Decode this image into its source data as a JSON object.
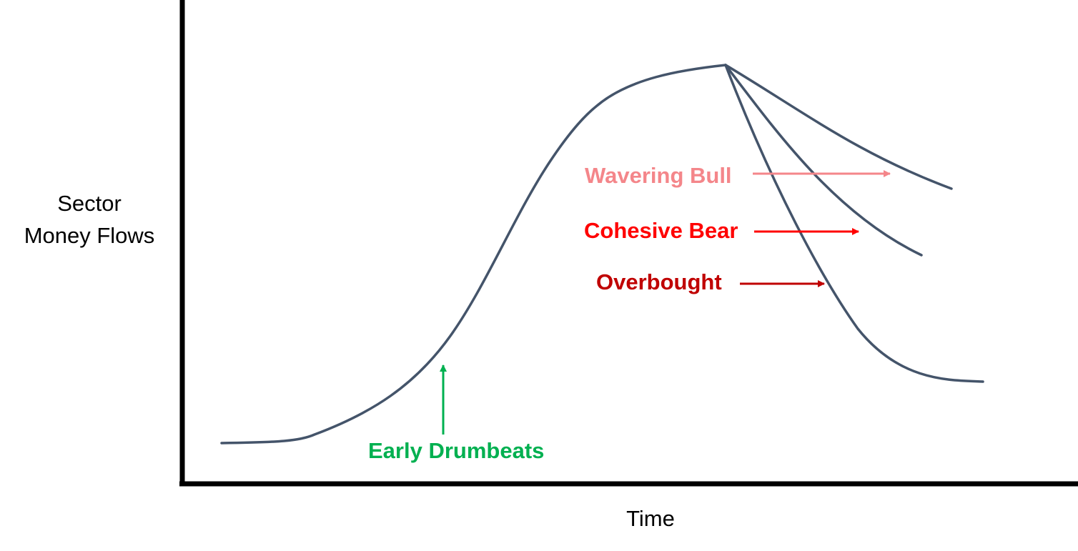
{
  "axes": {
    "y_label_lines": [
      "Sector",
      "Money Flows"
    ],
    "x_label": "Time",
    "axis_color": "#000000"
  },
  "curve": {
    "color": "#44546A",
    "description": "money-flow cycle rising to a peak then splitting into three declining scenarios"
  },
  "annotations": {
    "wavering_bull": {
      "label": "Wavering Bull",
      "color": "#F4868A"
    },
    "cohesive_bear": {
      "label": "Cohesive Bear",
      "color": "#FF0000"
    },
    "overbought": {
      "label": "Overbought",
      "color": "#C00000"
    },
    "early_drumbeats": {
      "label": "Early Drumbeats",
      "color": "#00B050"
    }
  }
}
